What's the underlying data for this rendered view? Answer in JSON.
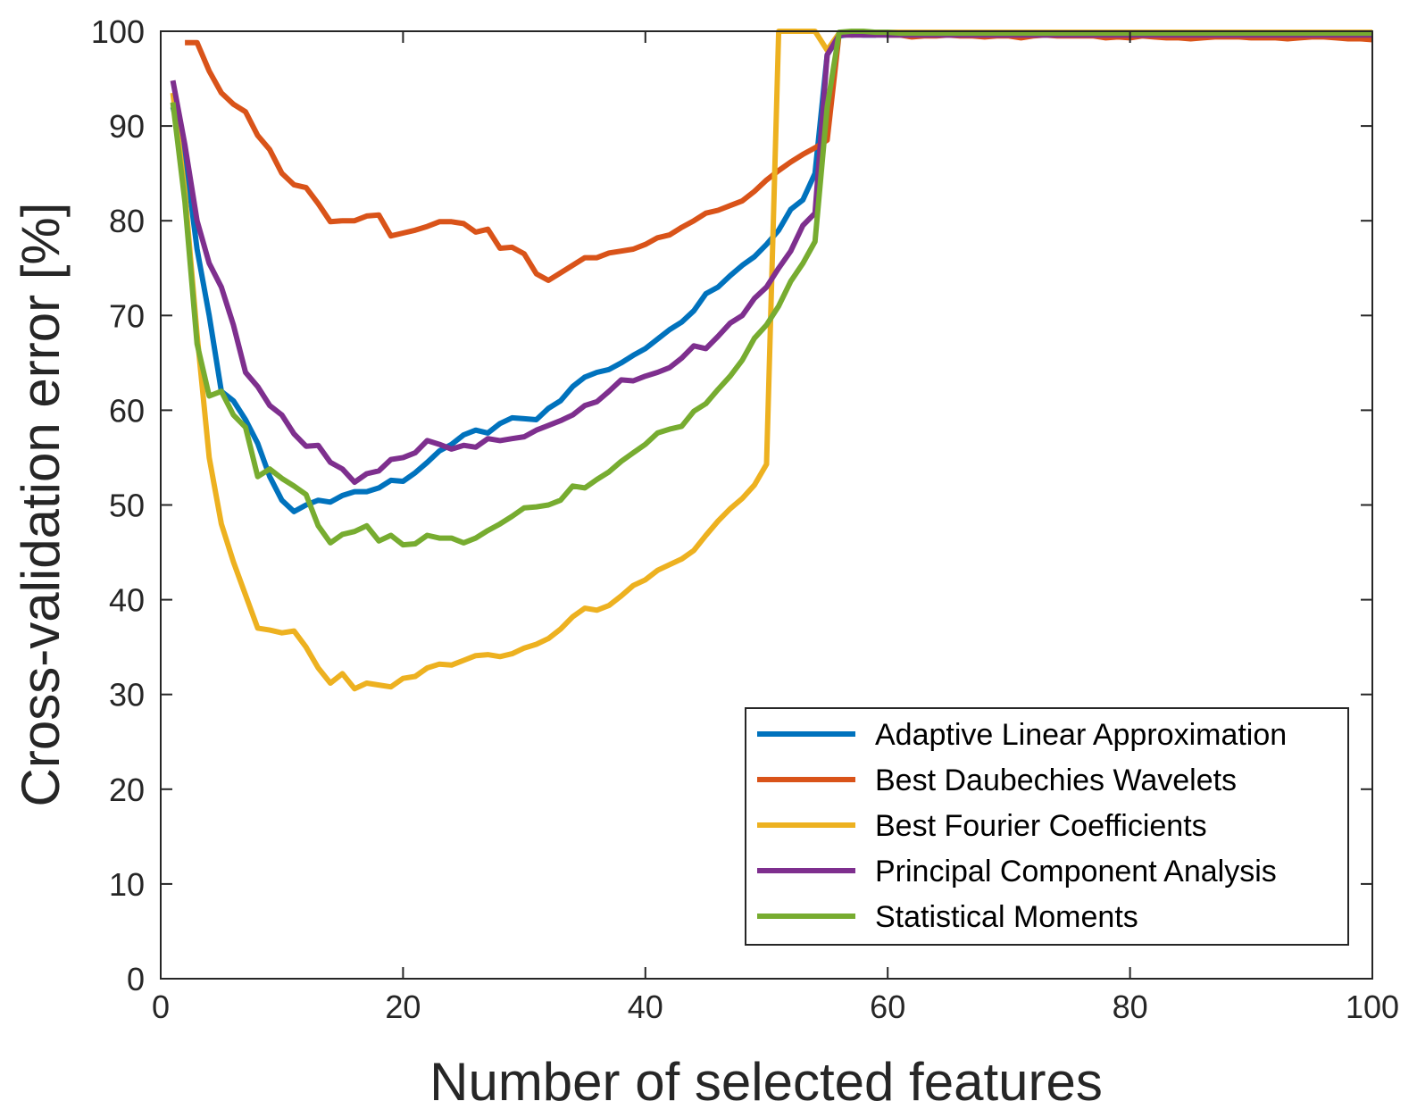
{
  "chart_data": {
    "type": "line",
    "xlabel": "Number of selected features",
    "ylabel": "Cross-validation error [%]",
    "xlim": [
      0,
      100
    ],
    "ylim": [
      0,
      100
    ],
    "xticks": [
      0,
      20,
      40,
      60,
      80,
      100
    ],
    "yticks": [
      0,
      10,
      20,
      30,
      40,
      50,
      60,
      70,
      80,
      90,
      100
    ],
    "grid": false,
    "legend_position": "bottom-right",
    "x": [
      1,
      2,
      3,
      4,
      5,
      6,
      7,
      8,
      9,
      10,
      11,
      12,
      13,
      14,
      15,
      16,
      17,
      18,
      19,
      20,
      21,
      22,
      23,
      24,
      25,
      26,
      27,
      28,
      29,
      30,
      31,
      32,
      33,
      34,
      35,
      36,
      37,
      38,
      39,
      40,
      41,
      42,
      43,
      44,
      45,
      46,
      47,
      48,
      49,
      50,
      51,
      52,
      53,
      54,
      55,
      56,
      57,
      58,
      59,
      60,
      61,
      62,
      63,
      64,
      65,
      66,
      67,
      68,
      69,
      70,
      71,
      72,
      73,
      74,
      75,
      76,
      77,
      78,
      79,
      80,
      81,
      82,
      83,
      84,
      85,
      86,
      87,
      88,
      89,
      90,
      91,
      92,
      93,
      94,
      95,
      96,
      97,
      98,
      99,
      100
    ],
    "series": [
      {
        "name": "Adaptive Linear Approximation",
        "color": "#0072BD",
        "values": [
          92,
          87,
          77,
          70,
          62,
          61,
          59,
          56.5,
          53,
          50.5,
          49.3,
          50,
          50.5,
          50.3,
          51,
          51.4,
          51.4,
          51.8,
          52.6,
          52.5,
          53.4,
          54.5,
          55.7,
          56.4,
          57.4,
          57.9,
          57.6,
          58.6,
          59.2,
          59.1,
          59.0,
          60.2,
          61,
          62.5,
          63.5,
          64,
          64.3,
          65,
          65.8,
          66.5,
          67.5,
          68.5,
          69.3,
          70.5,
          72.3,
          73,
          74.2,
          75.3,
          76.2,
          77.5,
          79,
          81.2,
          82.2,
          85,
          97.5,
          99.5,
          99.7,
          99.6,
          99.6,
          99.8,
          99.7,
          99.6,
          99.6,
          99.7,
          99.7,
          99.6,
          99.6,
          99.6,
          99.6,
          99.7,
          99.6,
          99.6,
          99.6,
          99.7,
          99.7,
          99.6,
          99.6,
          99.6,
          99.6,
          99.6,
          99.6,
          99.6,
          99.6,
          99.6,
          99.5,
          99.5,
          99.5,
          99.5,
          99.5,
          99.5,
          99.5,
          99.5,
          99.5,
          99.5,
          99.5,
          99.5,
          99.5,
          99.5,
          99.5,
          99.5
        ]
      },
      {
        "name": "Best Daubechies Wavelets",
        "color": "#D95319",
        "values": [
          null,
          98.8,
          98.8,
          95.8,
          93.5,
          92.3,
          91.5,
          89,
          87.5,
          85,
          83.8,
          83.5,
          81.8,
          79.9,
          80,
          80,
          80.5,
          80.6,
          78.4,
          78.7,
          79,
          79.4,
          79.9,
          79.9,
          79.7,
          78.8,
          79.1,
          77.1,
          77.2,
          76.5,
          74.4,
          73.7,
          74.5,
          75.3,
          76.1,
          76.1,
          76.6,
          76.8,
          77,
          77.5,
          78.2,
          78.5,
          79.3,
          80,
          80.8,
          81.1,
          81.6,
          82.1,
          83.1,
          84.3,
          85.3,
          86.2,
          87,
          87.7,
          88.5,
          99.8,
          99.6,
          99.7,
          99.7,
          99.6,
          99.6,
          99.4,
          99.5,
          99.5,
          99.6,
          99.5,
          99.5,
          99.4,
          99.5,
          99.5,
          99.3,
          99.5,
          99.6,
          99.5,
          99.5,
          99.5,
          99.5,
          99.3,
          99.4,
          99.3,
          99.5,
          99.4,
          99.3,
          99.3,
          99.2,
          99.3,
          99.4,
          99.4,
          99.4,
          99.3,
          99.3,
          99.3,
          99.2,
          99.3,
          99.4,
          99.4,
          99.3,
          99.2,
          99.2,
          99.1
        ]
      },
      {
        "name": "Best Fourier Coefficients",
        "color": "#EDB120",
        "values": [
          93.5,
          83,
          68,
          55,
          48,
          44,
          40.5,
          37,
          36.8,
          36.5,
          36.7,
          35,
          32.8,
          31.2,
          32.2,
          30.6,
          31.2,
          31,
          30.8,
          31.7,
          31.9,
          32.8,
          33.2,
          33.1,
          33.6,
          34.1,
          34.2,
          34,
          34.3,
          34.9,
          35.3,
          35.9,
          36.9,
          38.2,
          39.1,
          38.9,
          39.4,
          40.4,
          41.5,
          42.1,
          43.1,
          43.7,
          44.3,
          45.2,
          46.8,
          48.3,
          49.6,
          50.7,
          52.1,
          54.3,
          100,
          100,
          100,
          100,
          98,
          99.8,
          99.9,
          99.9,
          99.9,
          99.9,
          99.9,
          99.9,
          99.9,
          99.9,
          99.9,
          99.9,
          99.9,
          99.9,
          99.9,
          99.9,
          99.9,
          99.9,
          99.9,
          99.9,
          99.9,
          99.9,
          99.9,
          99.9,
          99.9,
          99.9,
          99.9,
          99.9,
          99.9,
          99.9,
          99.9,
          99.9,
          99.9,
          99.9,
          99.9,
          99.9,
          99.9,
          99.9,
          99.9,
          99.9,
          99.9,
          99.9,
          99.9,
          99.9,
          99.9,
          99.9
        ]
      },
      {
        "name": "Principal Component Analysis",
        "color": "#7E2F8E",
        "values": [
          94.8,
          88,
          80,
          75.5,
          73,
          69,
          64,
          62.5,
          60.5,
          59.5,
          57.5,
          56.2,
          56.3,
          54.5,
          53.8,
          52.4,
          53.3,
          53.6,
          54.8,
          55,
          55.5,
          56.8,
          56.4,
          55.9,
          56.3,
          56.1,
          57,
          56.8,
          57,
          57.2,
          57.9,
          58.4,
          58.9,
          59.5,
          60.5,
          60.9,
          62,
          63.2,
          63.1,
          63.6,
          64,
          64.5,
          65.5,
          66.8,
          66.5,
          67.8,
          69.2,
          70,
          71.8,
          73,
          75,
          76.8,
          79.5,
          80.8,
          97.5,
          99.6,
          99.6,
          99.6,
          99.6,
          99.6,
          99.6,
          99.6,
          99.6,
          99.6,
          99.6,
          99.6,
          99.6,
          99.6,
          99.6,
          99.6,
          99.6,
          99.6,
          99.6,
          99.6,
          99.6,
          99.6,
          99.6,
          99.6,
          99.6,
          99.6,
          99.6,
          99.6,
          99.6,
          99.6,
          99.6,
          99.6,
          99.6,
          99.6,
          99.6,
          99.6,
          99.6,
          99.6,
          99.6,
          99.6,
          99.6,
          99.6,
          99.6,
          99.6,
          99.6,
          99.6
        ]
      },
      {
        "name": "Statistical Moments",
        "color": "#77AC30",
        "values": [
          92.5,
          82,
          67,
          61.5,
          62,
          59.5,
          58.2,
          53,
          53.8,
          52.8,
          52,
          51.1,
          47.8,
          46,
          46.9,
          47.2,
          47.8,
          46.2,
          46.8,
          45.8,
          45.9,
          46.8,
          46.5,
          46.5,
          46,
          46.5,
          47.3,
          48,
          48.8,
          49.7,
          49.8,
          50,
          50.5,
          52,
          51.8,
          52.7,
          53.5,
          54.6,
          55.5,
          56.4,
          57.6,
          58,
          58.3,
          59.9,
          60.7,
          62.2,
          63.6,
          65.3,
          67.6,
          69,
          71,
          73.6,
          75.5,
          77.8,
          92,
          99.9,
          100,
          100,
          99.9,
          99.9,
          99.8,
          99.8,
          99.8,
          99.8,
          99.8,
          99.8,
          99.8,
          99.8,
          99.8,
          99.8,
          99.8,
          99.8,
          99.8,
          99.8,
          99.8,
          99.8,
          99.8,
          99.8,
          99.8,
          99.8,
          99.8,
          99.8,
          99.8,
          99.8,
          99.8,
          99.8,
          99.8,
          99.8,
          99.8,
          99.8,
          99.8,
          99.8,
          99.8,
          99.8,
          99.8,
          99.8,
          99.8,
          99.8,
          99.8,
          99.8
        ]
      }
    ]
  }
}
